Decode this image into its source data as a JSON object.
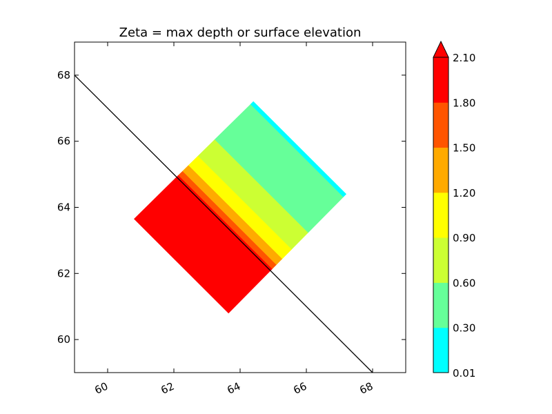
{
  "chart_data": {
    "type": "heatmap",
    "title": "Zeta = max depth or surface elevation",
    "xlabel": "",
    "ylabel": "",
    "xlim": [
      59,
      69
    ],
    "ylim": [
      59,
      69
    ],
    "xticks": [
      "60",
      "62",
      "64",
      "66",
      "68"
    ],
    "yticks": [
      "60",
      "62",
      "64",
      "66",
      "68"
    ],
    "grid": false,
    "colorbar": {
      "levels": [
        "0.01",
        "0.30",
        "0.60",
        "0.90",
        "1.20",
        "1.50",
        "1.80",
        "2.10"
      ],
      "colors": [
        "#00ffff",
        "#66ff99",
        "#ccff33",
        "#ffff00",
        "#ffaa00",
        "#ff5500",
        "#ff0000"
      ],
      "extend": "max"
    },
    "domain_corners": [
      [
        60.8,
        63.65
      ],
      [
        64.4,
        67.2
      ],
      [
        67.2,
        64.4
      ],
      [
        63.65,
        60.8
      ]
    ],
    "bands": [
      {
        "range": "0.01-0.30",
        "color": "#00ffff",
        "t0": 0.975,
        "t1": 1.0
      },
      {
        "range": "0.30-0.60",
        "color": "#66ff99",
        "t0": 0.675,
        "t1": 0.975
      },
      {
        "range": "0.60-0.90",
        "color": "#ccff33",
        "t0": 0.535,
        "t1": 0.675
      },
      {
        "range": "0.90-1.20",
        "color": "#ffff00",
        "t0": 0.455,
        "t1": 0.535
      },
      {
        "range": "1.20-1.50",
        "color": "#ffaa00",
        "t0": 0.405,
        "t1": 0.455
      },
      {
        "range": "1.50-1.80",
        "color": "#ff5500",
        "t0": 0.37,
        "t1": 0.405
      },
      {
        "range": "1.80-2.10",
        "color": "#ff0000",
        "t0": 0.0,
        "t1": 0.37
      }
    ],
    "line": [
      [
        59,
        68
      ],
      [
        68,
        59
      ]
    ]
  }
}
